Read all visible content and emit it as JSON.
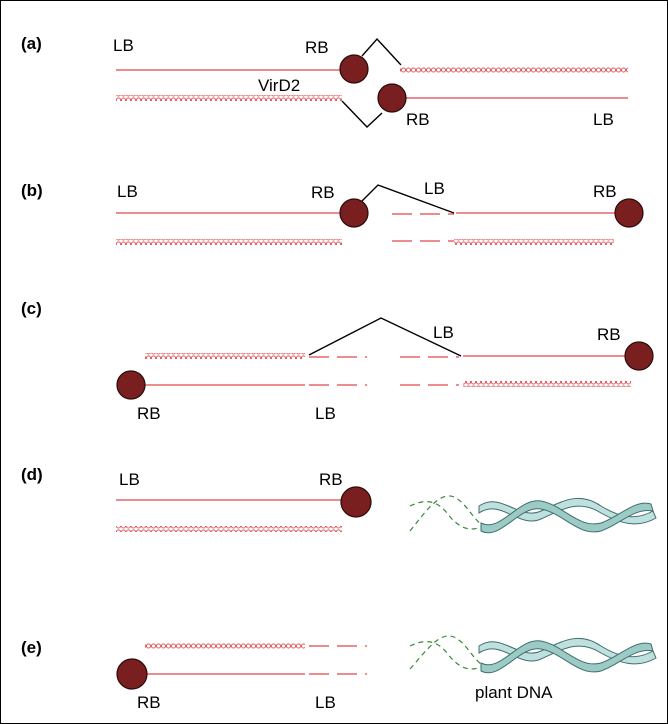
{
  "panels": [
    {
      "id": "a",
      "label": "(a)"
    },
    {
      "id": "b",
      "label": "(b)"
    },
    {
      "id": "c",
      "label": "(c)"
    },
    {
      "id": "d",
      "label": "(d)"
    },
    {
      "id": "e",
      "label": "(e)"
    }
  ],
  "labels": {
    "lb": "LB",
    "rb": "RB",
    "virD2": "VirD2",
    "plant_dna": "plant DNA"
  },
  "colors": {
    "t_strand": "#e0474c",
    "virD2_protein": "#7a1f1f",
    "plant_dna_fill": "#bfe0dc",
    "plant_dna_dashes": "#3a8a3a"
  }
}
